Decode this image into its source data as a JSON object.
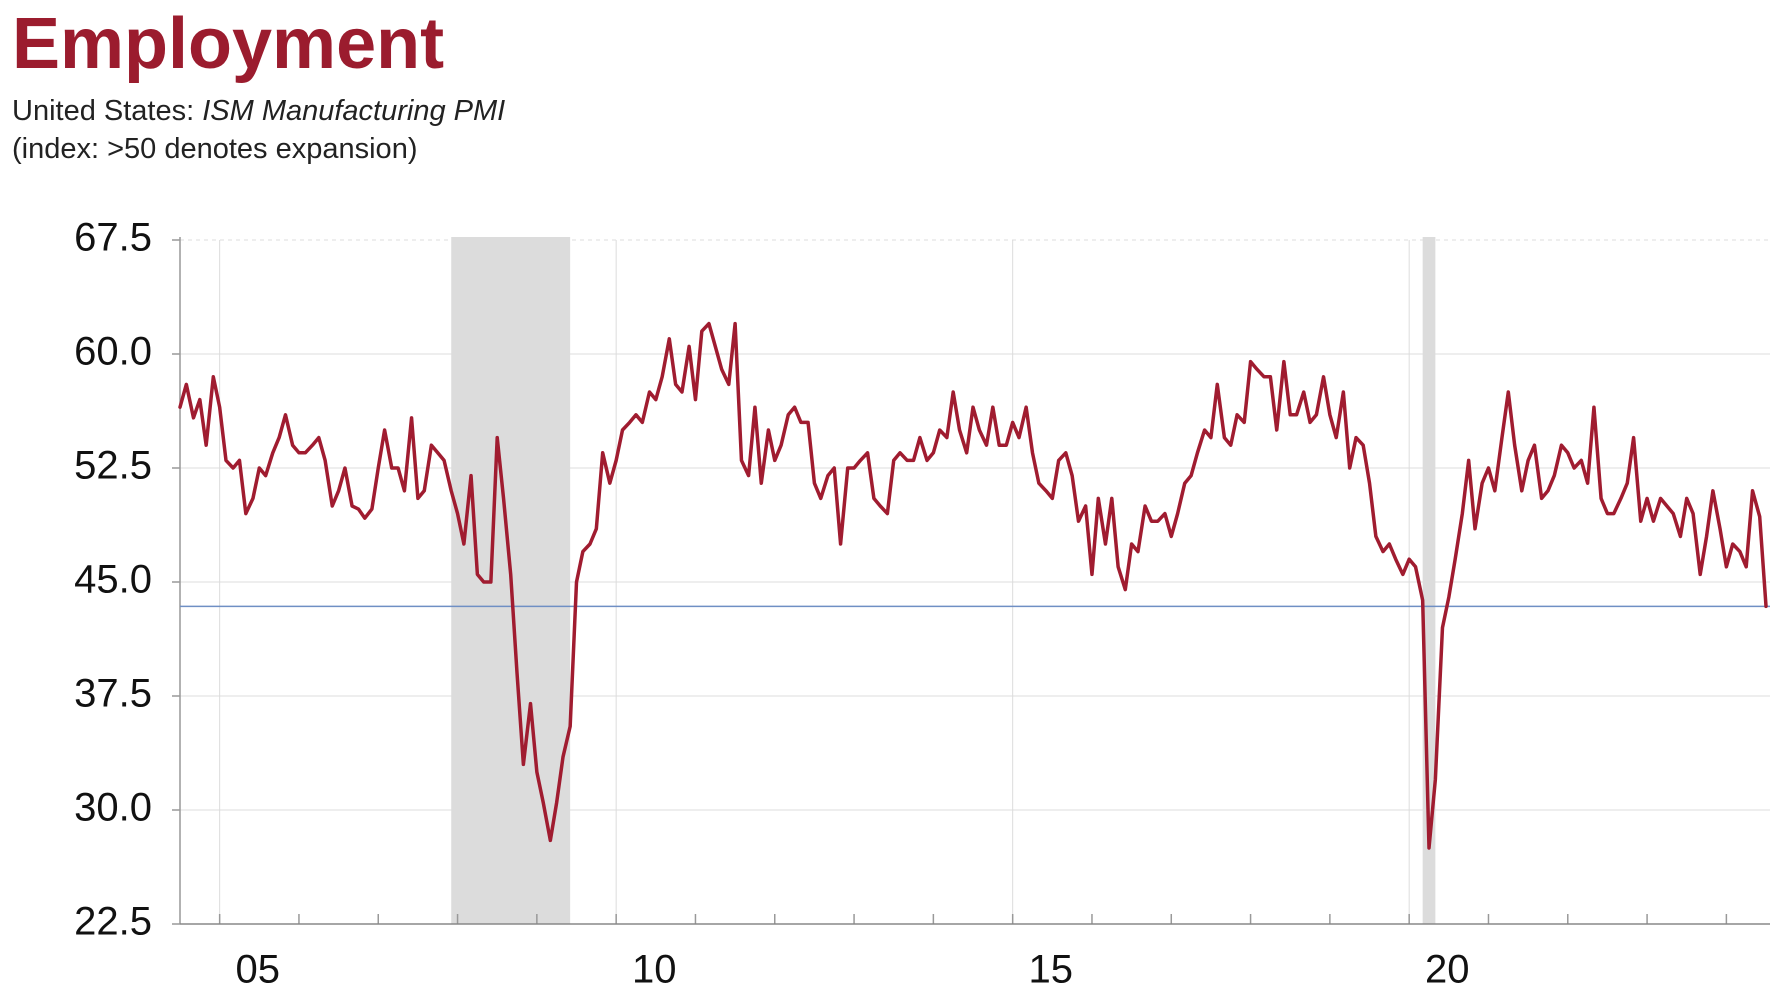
{
  "chart_data": {
    "type": "line",
    "title": "Employment",
    "subtitle": {
      "region": "United States:",
      "series": "ISM Manufacturing PMI"
    },
    "note": "(index: >50 denotes expansion)",
    "color": "#a01c30",
    "reference_line": {
      "value": 43.4,
      "color": "#6f8fc4"
    },
    "recessions": [
      [
        2007.92,
        2009.42
      ],
      [
        2020.17,
        2020.33
      ]
    ],
    "recession_color": "#dcdcdc",
    "grid": true,
    "xlim": [
      2004.5,
      2024.55
    ],
    "ylim": [
      22.5,
      67.5
    ],
    "yticks": [
      22.5,
      {
        "value": 30,
        "label": "30.0"
      },
      37.5,
      {
        "value": 45,
        "label": "45.0"
      },
      52.5,
      {
        "value": 60,
        "label": "60.0"
      },
      67.5
    ],
    "xticks": [
      {
        "value": 2005,
        "label": "05"
      },
      {
        "value": 2010,
        "label": "10"
      },
      {
        "value": 2015,
        "label": "15"
      },
      {
        "value": 2020,
        "label": "20"
      }
    ],
    "minor_xticks": [
      2005,
      2006,
      2007,
      2008,
      2009,
      2010,
      2011,
      2012,
      2013,
      2014,
      2015,
      2016,
      2017,
      2018,
      2019,
      2020,
      2021,
      2022,
      2023,
      2024
    ],
    "x": [
      2004.5,
      2004.58,
      2004.67,
      2004.75,
      2004.83,
      2004.92,
      2005,
      2005.08,
      2005.17,
      2005.25,
      2005.33,
      2005.42,
      2005.5,
      2005.58,
      2005.67,
      2005.75,
      2005.83,
      2005.92,
      2006,
      2006.08,
      2006.17,
      2006.25,
      2006.33,
      2006.42,
      2006.5,
      2006.58,
      2006.67,
      2006.75,
      2006.83,
      2006.92,
      2007,
      2007.08,
      2007.17,
      2007.25,
      2007.33,
      2007.42,
      2007.5,
      2007.58,
      2007.67,
      2007.75,
      2007.83,
      2007.92,
      2008,
      2008.08,
      2008.17,
      2008.25,
      2008.33,
      2008.42,
      2008.5,
      2008.58,
      2008.67,
      2008.75,
      2008.83,
      2008.92,
      2009,
      2009.08,
      2009.17,
      2009.25,
      2009.33,
      2009.42,
      2009.5,
      2009.58,
      2009.67,
      2009.75,
      2009.83,
      2009.92,
      2010,
      2010.08,
      2010.17,
      2010.25,
      2010.33,
      2010.42,
      2010.5,
      2010.58,
      2010.67,
      2010.75,
      2010.83,
      2010.92,
      2011,
      2011.08,
      2011.17,
      2011.25,
      2011.33,
      2011.42,
      2011.5,
      2011.58,
      2011.67,
      2011.75,
      2011.83,
      2011.92,
      2012,
      2012.08,
      2012.17,
      2012.25,
      2012.33,
      2012.42,
      2012.5,
      2012.58,
      2012.67,
      2012.75,
      2012.83,
      2012.92,
      2013,
      2013.08,
      2013.17,
      2013.25,
      2013.33,
      2013.42,
      2013.5,
      2013.58,
      2013.67,
      2013.75,
      2013.83,
      2013.92,
      2014,
      2014.08,
      2014.17,
      2014.25,
      2014.33,
      2014.42,
      2014.5,
      2014.58,
      2014.67,
      2014.75,
      2014.83,
      2014.92,
      2015,
      2015.08,
      2015.17,
      2015.25,
      2015.33,
      2015.42,
      2015.5,
      2015.58,
      2015.67,
      2015.75,
      2015.83,
      2015.92,
      2016,
      2016.08,
      2016.17,
      2016.25,
      2016.33,
      2016.42,
      2016.5,
      2016.58,
      2016.67,
      2016.75,
      2016.83,
      2016.92,
      2017,
      2017.08,
      2017.17,
      2017.25,
      2017.33,
      2017.42,
      2017.5,
      2017.58,
      2017.67,
      2017.75,
      2017.83,
      2017.92,
      2018,
      2018.08,
      2018.17,
      2018.25,
      2018.33,
      2018.42,
      2018.5,
      2018.58,
      2018.67,
      2018.75,
      2018.83,
      2018.92,
      2019,
      2019.08,
      2019.17,
      2019.25,
      2019.33,
      2019.42,
      2019.5,
      2019.58,
      2019.67,
      2019.75,
      2019.83,
      2019.92,
      2020,
      2020.08,
      2020.17,
      2020.25,
      2020.33,
      2020.42,
      2020.5,
      2020.58,
      2020.67,
      2020.75,
      2020.83,
      2020.92,
      2021,
      2021.08,
      2021.17,
      2021.25,
      2021.33,
      2021.42,
      2021.5,
      2021.58,
      2021.67,
      2021.75,
      2021.83,
      2021.92,
      2022,
      2022.08,
      2022.17,
      2022.25,
      2022.33,
      2022.42,
      2022.5,
      2022.58,
      2022.67,
      2022.75,
      2022.83,
      2022.92,
      2023,
      2023.08,
      2023.17,
      2023.25,
      2023.33,
      2023.42,
      2023.5,
      2023.58,
      2023.67,
      2023.75,
      2023.83,
      2023.92,
      2024,
      2024.08,
      2024.17,
      2024.25,
      2024.33,
      2024.42,
      2024.5
    ],
    "values": [
      56.5,
      58,
      55.8,
      57,
      54,
      58.5,
      56.5,
      53,
      52.5,
      53,
      49.5,
      50.5,
      52.5,
      52,
      53.5,
      54.5,
      56,
      54,
      53.5,
      53.5,
      54,
      54.5,
      53,
      50,
      51,
      52.5,
      50,
      49.8,
      49.2,
      49.8,
      52.5,
      55,
      52.5,
      52.5,
      51,
      55.8,
      50.5,
      51,
      54,
      53.5,
      53,
      51,
      49.5,
      47.5,
      52,
      45.5,
      45,
      45,
      54.5,
      50.5,
      45.5,
      39,
      33,
      37,
      32.5,
      30.5,
      28,
      30.5,
      33.5,
      35.5,
      45,
      47,
      47.5,
      48.5,
      53.5,
      51.5,
      53,
      55,
      55.5,
      56,
      55.5,
      57.5,
      57,
      58.5,
      61,
      58,
      57.5,
      60.5,
      57,
      61.5,
      62,
      60.5,
      59,
      58,
      62,
      53,
      52,
      56.5,
      51.5,
      55,
      53,
      54,
      56,
      56.5,
      55.5,
      55.5,
      51.5,
      50.5,
      52,
      52.5,
      47.5,
      52.5,
      52.5,
      53,
      53.5,
      50.5,
      50,
      49.5,
      53,
      53.5,
      53,
      53,
      54.5,
      53,
      53.5,
      55,
      54.5,
      57.5,
      55,
      53.5,
      56.5,
      55,
      54,
      56.5,
      54,
      54,
      55.5,
      54.5,
      56.5,
      53.5,
      51.5,
      51,
      50.5,
      53,
      53.5,
      52,
      49,
      50,
      45.5,
      50.5,
      47.5,
      50.5,
      46,
      44.5,
      47.5,
      47,
      50,
      49,
      49,
      49.5,
      48,
      49.5,
      51.5,
      52,
      53.5,
      55,
      54.5,
      58,
      54.5,
      54,
      56,
      55.5,
      59.5,
      59,
      58.5,
      58.5,
      55,
      59.5,
      56,
      56,
      57.5,
      55.5,
      56,
      58.5,
      56,
      54.5,
      57.5,
      52.5,
      54.5,
      54,
      51.5,
      48,
      47,
      47.5,
      46.5,
      45.5,
      46.5,
      46,
      43.8,
      27.5,
      32,
      42,
      44,
      46.5,
      49.5,
      53,
      48.5,
      51.5,
      52.5,
      51,
      54.5,
      57.5,
      54,
      51,
      53,
      54,
      50.5,
      51,
      52,
      54,
      53.5,
      52.5,
      53,
      51.5,
      56.5,
      50.5,
      49.5,
      49.5,
      50.5,
      51.5,
      54.5,
      49,
      50.5,
      49,
      50.5,
      50,
      49.5,
      48,
      50.5,
      49.5,
      45.5,
      48,
      51,
      48.5,
      46,
      47.5,
      47,
      46,
      51,
      49.3,
      43.4
    ]
  }
}
